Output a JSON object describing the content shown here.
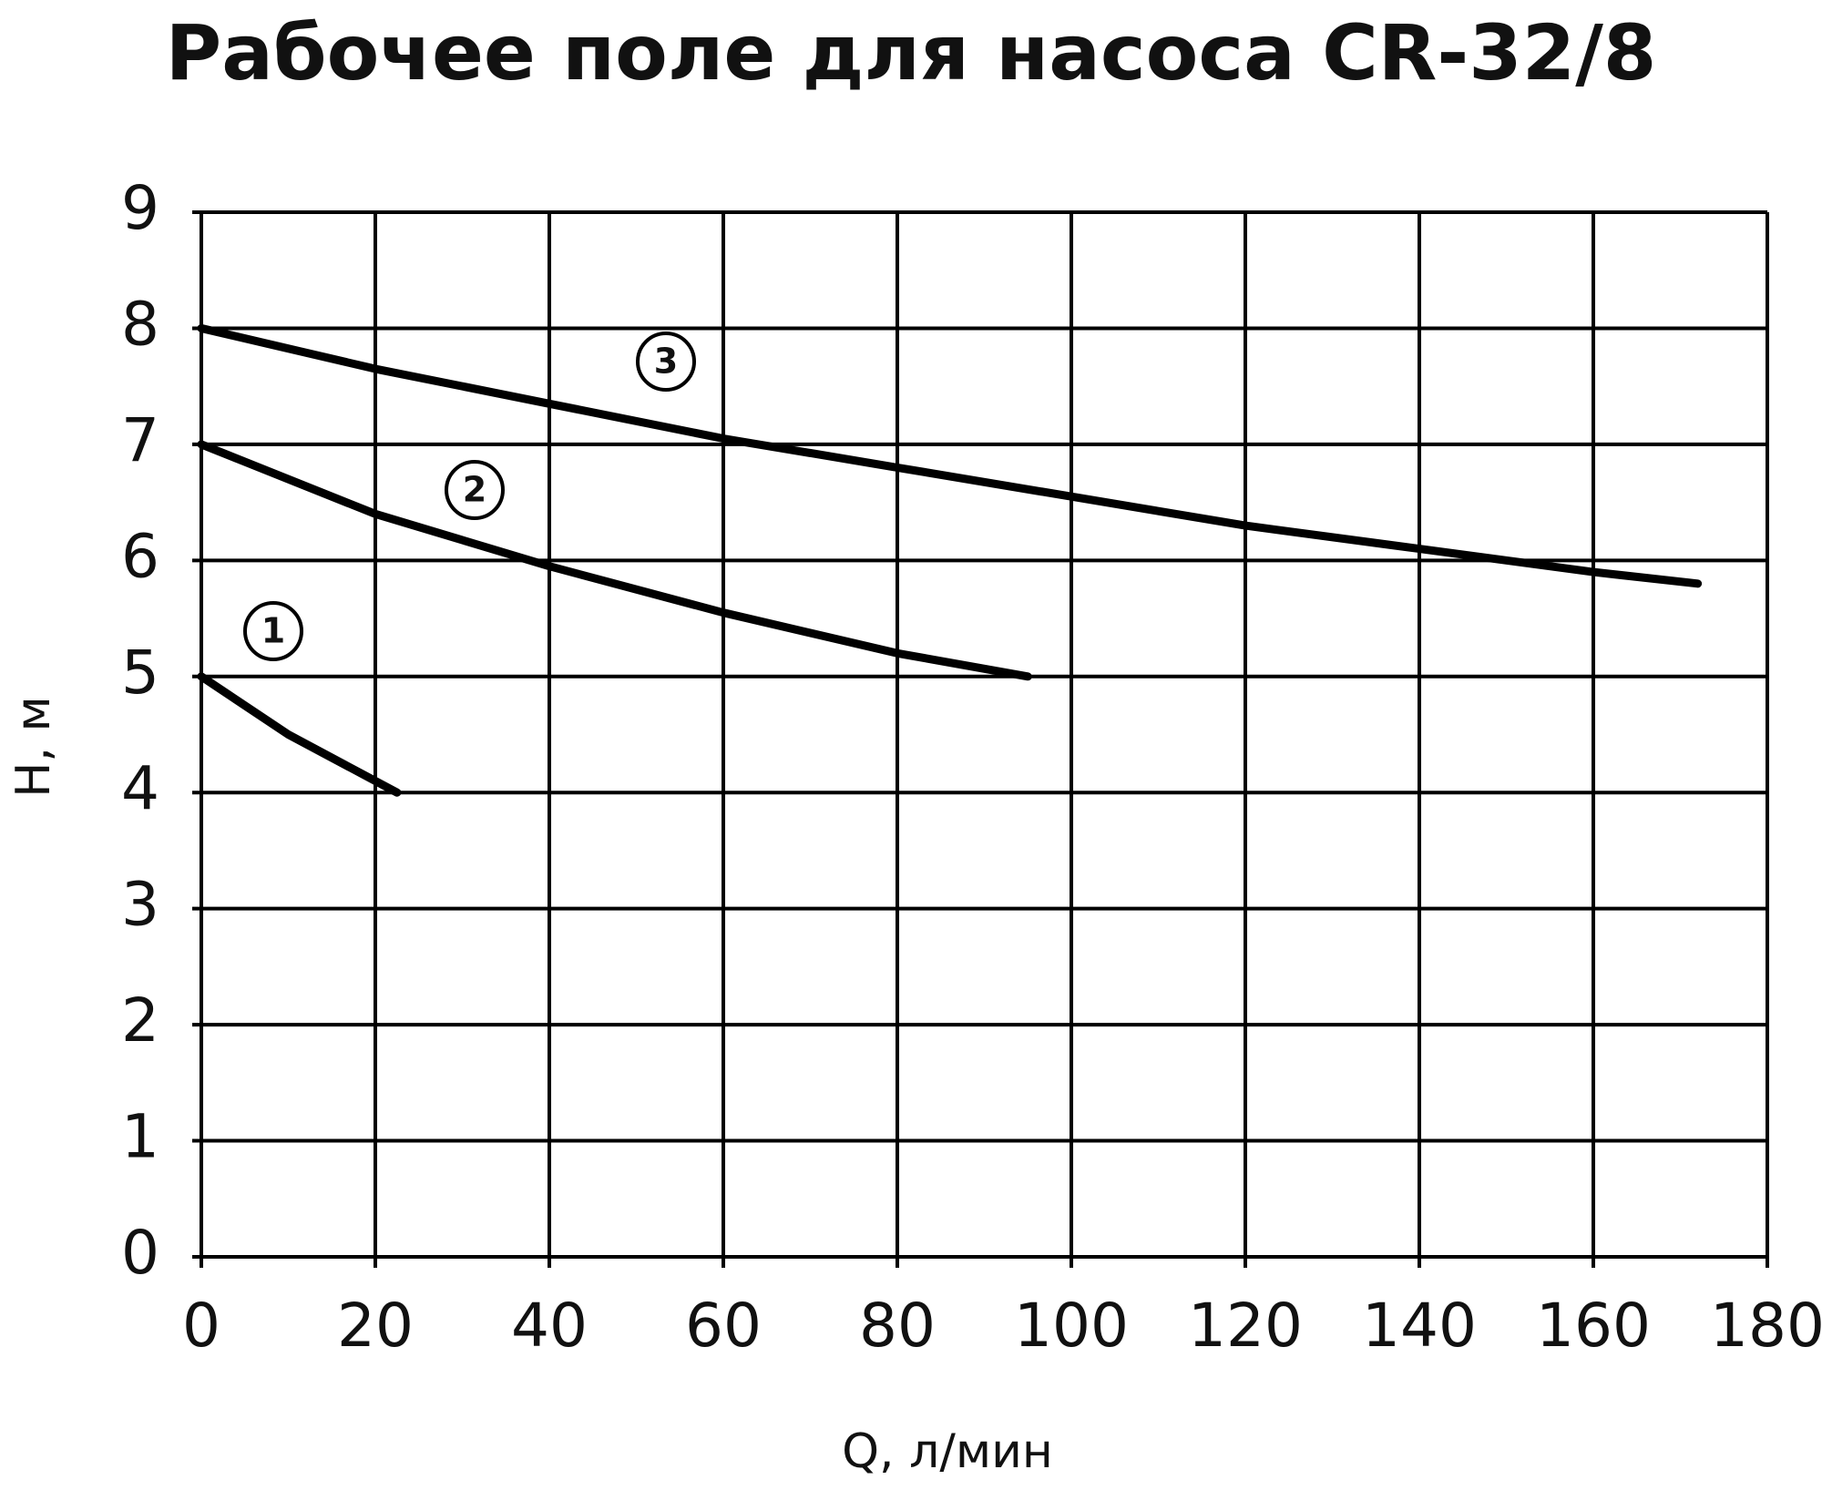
{
  "chart_data": {
    "type": "line",
    "title": "Рабочее поле для насоса CR-32/8",
    "xlabel": "Q, л/мин",
    "ylabel": "H, м",
    "xlim": [
      0,
      180
    ],
    "xticks": [
      0,
      20,
      40,
      60,
      80,
      100,
      120,
      140,
      160,
      180
    ],
    "ylim": [
      0,
      9
    ],
    "yticks": [
      0,
      1,
      2,
      3,
      4,
      5,
      6,
      7,
      8,
      9
    ],
    "grid": true,
    "series": [
      {
        "name": "1",
        "color": "#000000",
        "x": [
          0,
          10,
          22.5
        ],
        "values": [
          5,
          4.5,
          4
        ]
      },
      {
        "name": "2",
        "color": "#000000",
        "x": [
          0,
          20,
          40,
          60,
          80,
          95
        ],
        "values": [
          7,
          6.4,
          5.95,
          5.55,
          5.2,
          5
        ]
      },
      {
        "name": "3",
        "color": "#000000",
        "x": [
          0,
          20,
          40,
          60,
          80,
          100,
          120,
          140,
          160,
          172
        ],
        "values": [
          8,
          7.65,
          7.35,
          7.05,
          6.8,
          6.55,
          6.3,
          6.1,
          5.9,
          5.8
        ]
      }
    ]
  }
}
